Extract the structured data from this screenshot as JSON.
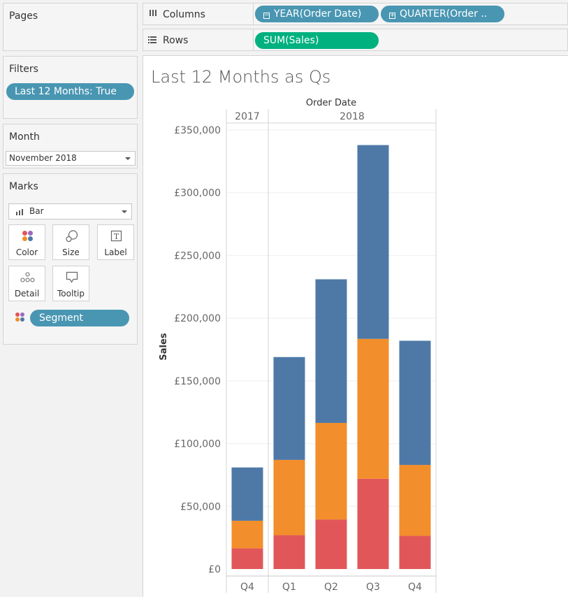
{
  "pages": {
    "title": "Pages"
  },
  "filters": {
    "title": "Filters",
    "pills": [
      "Last 12 Months: True"
    ]
  },
  "month": {
    "title": "Month",
    "value": "November 2018"
  },
  "marks": {
    "title": "Marks",
    "type": "Bar",
    "buttons": {
      "color": "Color",
      "size": "Size",
      "label": "Label",
      "detail": "Detail",
      "tooltip": "Tooltip"
    },
    "color_pill": "Segment"
  },
  "shelves": {
    "columns_label": "Columns",
    "columns_pills": [
      "YEAR(Order Date)",
      "QUARTER(Order .."
    ],
    "rows_label": "Rows",
    "rows_pills": [
      "SUM(Sales)"
    ]
  },
  "view": {
    "title": "Last 12 Months as Qs"
  },
  "colors": {
    "pill_blue": "#4996b2",
    "pill_green": "#00b180",
    "seg_blue": "#4e79a7",
    "seg_orange": "#f28e2b",
    "seg_red": "#e15759"
  },
  "chart_data": {
    "type": "bar",
    "stacked": true,
    "top_header": "Order Date",
    "years": [
      {
        "label": "2017",
        "count": 1
      },
      {
        "label": "2018",
        "count": 4
      }
    ],
    "categories": [
      "Q4",
      "Q1",
      "Q2",
      "Q3",
      "Q4"
    ],
    "ylabel": "Sales",
    "ylim": [
      0,
      350000
    ],
    "yticks": [
      0,
      50000,
      100000,
      150000,
      200000,
      250000,
      300000,
      350000
    ],
    "ytick_labels": [
      "£0",
      "£50,000",
      "£100,000",
      "£150,000",
      "£200,000",
      "£250,000",
      "£300,000",
      "£350,000"
    ],
    "series": [
      {
        "color": "#e15759",
        "values": [
          16500,
          27000,
          39500,
          72000,
          26500
        ]
      },
      {
        "color": "#f28e2b",
        "values": [
          22000,
          60000,
          77000,
          111500,
          56500
        ]
      },
      {
        "color": "#4e79a7",
        "values": [
          42500,
          82000,
          114500,
          154500,
          99000
        ]
      }
    ]
  }
}
